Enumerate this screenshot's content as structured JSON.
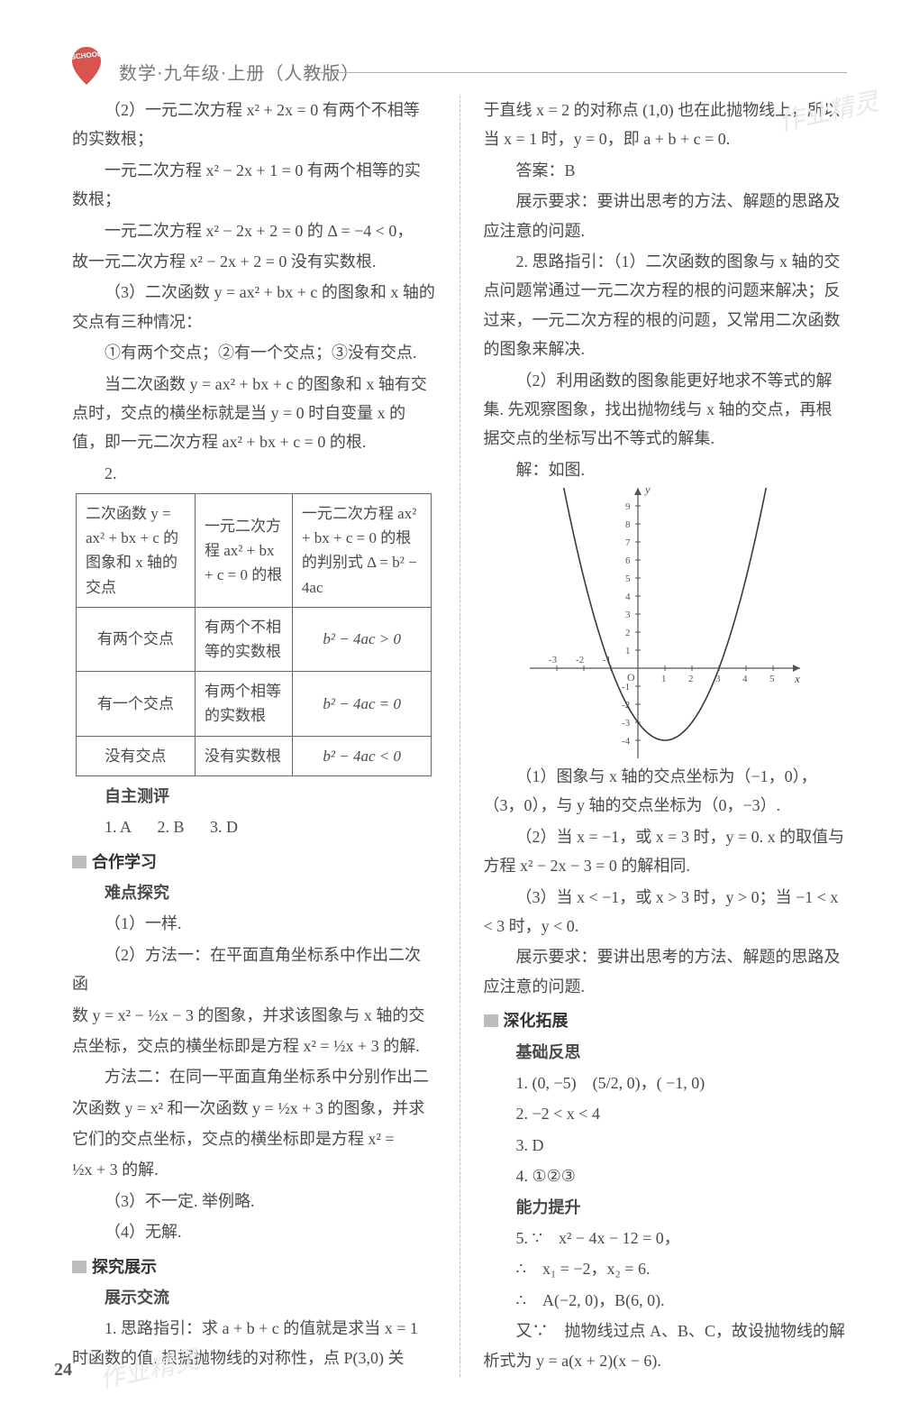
{
  "header": {
    "title": "数学·九年级·上册（人教版）",
    "logo_text": "SCHOOL"
  },
  "page_number": "24",
  "watermark": "作业精灵",
  "left": {
    "p1": "（2）一元二次方程 x² + 2x = 0 有两个不相等的实数根；",
    "p2": "一元二次方程 x² − 2x + 1 = 0 有两个相等的实数根；",
    "p3": "一元二次方程 x² − 2x + 2 = 0 的 Δ = −4 < 0，",
    "p4": "故一元二次方程 x² − 2x + 2 = 0 没有实数根.",
    "p5": "（3）二次函数 y = ax² + bx + c 的图象和 x 轴的交点有三种情况：",
    "p6": "①有两个交点；②有一个交点；③没有交点.",
    "p7": "当二次函数 y = ax² + bx + c 的图象和 x 轴有交点时，交点的横坐标就是当 y = 0 时自变量 x 的值，即一元二次方程 ax² + bx + c = 0 的根.",
    "p8": "2.",
    "table": {
      "h1": "二次函数 y = ax² + bx + c 的图象和 x 轴的交点",
      "h2": "一元二次方程 ax² + bx + c = 0 的根",
      "h3": "一元二次方程 ax² + bx + c = 0 的根的判别式 Δ = b² − 4ac",
      "r1c1": "有两个交点",
      "r1c2": "有两个不相等的实数根",
      "r1c3": "b² − 4ac > 0",
      "r2c1": "有一个交点",
      "r2c2": "有两个相等的实数根",
      "r2c3": "b² − 4ac = 0",
      "r3c1": "没有交点",
      "r3c2": "没有实数根",
      "r3c3": "b² − 4ac < 0"
    },
    "sec_zizhu": "自主测评",
    "zizhu_ans_1": "1. A",
    "zizhu_ans_2": "2. B",
    "zizhu_ans_3": "3. D",
    "sec_hezuo": "合作学习",
    "sub_nandian": "难点探究",
    "hz1": "（1）一样.",
    "hz2a": "（2）方法一：在平面直角坐标系中作出二次函",
    "hz2b": "数 y = x² − ½x − 3 的图象，并求该图象与 x 轴的交",
    "hz2c": "点坐标，交点的横坐标即是方程 x² = ½x + 3 的解.",
    "hz3a": "方法二：在同一平面直角坐标系中分别作出二",
    "hz3b": "次函数 y = x² 和一次函数 y = ½x + 3 的图象，并求",
    "hz3c": "它们的交点坐标，交点的横坐标即是方程 x² =",
    "hz3d": "½x + 3 的解.",
    "hz4": "（3）不一定. 举例略.",
    "hz5": "（4）无解.",
    "sec_tanjiu": "探究展示",
    "sub_zhanshi": "展示交流",
    "tj1": "1. 思路指引：求 a + b + c 的值就是求当 x = 1 时函数的值. 根据抛物线的对称性，点 P(3,0) 关"
  },
  "right": {
    "r1": "于直线 x = 2 的对称点 (1,0) 也在此抛物线上，所以当 x = 1 时，y = 0，即 a + b + c = 0.",
    "r2": "答案：B",
    "r3": "展示要求：要讲出思考的方法、解题的思路及应注意的问题.",
    "r4": "2. 思路指引：（1）二次函数的图象与 x 轴的交点问题常通过一元二次方程的根的问题来解决；反过来，一元二次方程的根的问题，又常用二次函数的图象来解决.",
    "r5": "（2）利用函数的图象能更好地求不等式的解集. 先观察图象，找出抛物线与 x 轴的交点，再根据交点的坐标写出不等式的解集.",
    "r6": "解：如图.",
    "graph": {
      "x_ticks": [
        -3,
        -2,
        -1,
        1,
        2,
        3,
        4,
        5
      ],
      "y_ticks": [
        -4,
        -3,
        -2,
        -1,
        1,
        2,
        3,
        4,
        5,
        6,
        7,
        8,
        9
      ],
      "curve_color": "#3a3a3a",
      "axis_color": "#555",
      "vertex": [
        1,
        -4
      ],
      "roots": [
        -1,
        3
      ]
    },
    "r7": "（1）图象与 x 轴的交点坐标为（−1，0），（3，0），与 y 轴的交点坐标为（0，−3）.",
    "r8": "（2）当 x = −1，或 x = 3 时，y = 0. x 的取值与方程 x² − 2x − 3 = 0 的解相同.",
    "r9": "（3）当 x < −1，或 x > 3 时，y > 0；当 −1 < x < 3 时，y < 0.",
    "r10": "展示要求：要讲出思考的方法、解题的思路及应注意的问题.",
    "sec_shenhua": "深化拓展",
    "sub_jichu": "基础反思",
    "jc1": "1. (0, −5)　(5/2, 0)，( −1, 0)",
    "jc2": "2. −2 < x < 4",
    "jc3": "3. D",
    "jc4": "4. ①②③",
    "sub_nengli": "能力提升",
    "nl1": "5. ∵　x² − 4x − 12 = 0，",
    "nl2": "∴　x₁ = −2，x₂ = 6.",
    "nl3": "∴　A(−2, 0)，B(6, 0).",
    "nl4": "又∵　抛物线过点 A、B、C，故设抛物线的解析式为 y = a(x + 2)(x − 6).",
    "nl4b": ""
  }
}
